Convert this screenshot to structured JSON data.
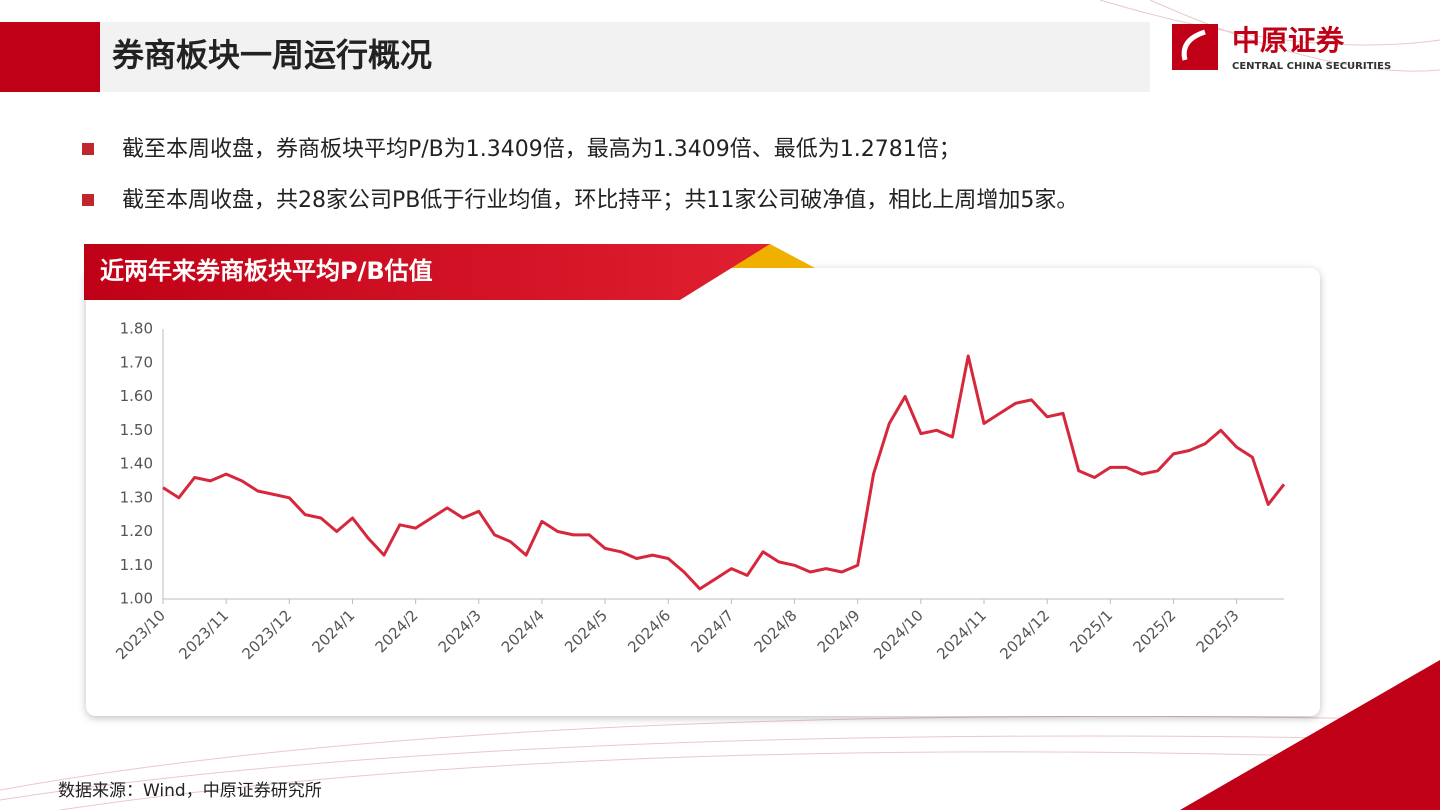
{
  "header": {
    "title": "券商板块一周运行概况",
    "logo_cn": "中原证券",
    "logo_en": "CENTRAL CHINA SECURITIES"
  },
  "bullets": [
    "截至本周收盘，券商板块平均P/B为1.3409倍，最高为1.3409倍、最低为1.2781倍；",
    "截至本周收盘，共28家公司PB低于行业均值，环比持平；共11家公司破净值，相比上周增加5家。"
  ],
  "source": "数据来源：Wind，中原证券研究所",
  "chart_data": {
    "type": "line",
    "title": "近两年来券商板块平均P/B估值",
    "color": "#d6283c",
    "categories": [
      "2023/10",
      null,
      null,
      null,
      "2023/11",
      null,
      null,
      null,
      "2023/12",
      null,
      null,
      null,
      "2024/1",
      null,
      null,
      null,
      "2024/2",
      null,
      null,
      null,
      "2024/3",
      null,
      null,
      null,
      "2024/4",
      null,
      null,
      null,
      "2024/5",
      null,
      null,
      null,
      "2024/6",
      null,
      null,
      null,
      "2024/7",
      null,
      null,
      null,
      "2024/8",
      null,
      null,
      null,
      "2024/9",
      null,
      null,
      null,
      "2024/10",
      null,
      null,
      null,
      "2024/11",
      null,
      null,
      null,
      "2024/12",
      null,
      null,
      null,
      "2025/1",
      null,
      null,
      null,
      "2025/2",
      null,
      null,
      null,
      "2025/3",
      null,
      null,
      null
    ],
    "values": [
      1.33,
      1.3,
      1.36,
      1.35,
      1.37,
      1.35,
      1.32,
      1.31,
      1.3,
      1.25,
      1.24,
      1.2,
      1.24,
      1.18,
      1.13,
      1.22,
      1.21,
      1.24,
      1.27,
      1.24,
      1.26,
      1.19,
      1.17,
      1.13,
      1.23,
      1.2,
      1.19,
      1.19,
      1.15,
      1.14,
      1.12,
      1.13,
      1.12,
      1.08,
      1.03,
      1.06,
      1.09,
      1.07,
      1.14,
      1.11,
      1.1,
      1.08,
      1.09,
      1.08,
      1.1,
      1.37,
      1.52,
      1.6,
      1.49,
      1.5,
      1.48,
      1.72,
      1.52,
      1.55,
      1.58,
      1.59,
      1.54,
      1.55,
      1.38,
      1.36,
      1.39,
      1.39,
      1.37,
      1.38,
      1.43,
      1.44,
      1.46,
      1.5,
      1.45,
      1.42,
      1.28,
      1.34
    ],
    "ylim": [
      1.0,
      1.8
    ],
    "yticks": [
      {
        "value": 1.0,
        "label": "1.00"
      },
      {
        "value": 1.1,
        "label": "1.10"
      },
      {
        "value": 1.2,
        "label": "1.20"
      },
      {
        "value": 1.3,
        "label": "1.30"
      },
      {
        "value": 1.4,
        "label": "1.40"
      },
      {
        "value": 1.5,
        "label": "1.50"
      },
      {
        "value": 1.6,
        "label": "1.60"
      },
      {
        "value": 1.7,
        "label": "1.70"
      },
      {
        "value": 1.8,
        "label": "1.80"
      }
    ]
  }
}
